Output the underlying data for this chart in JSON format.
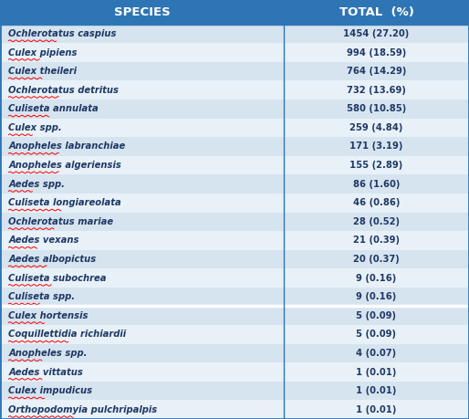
{
  "title_species": "SPECIES",
  "title_total": "TOTAL  (%)",
  "header_bg": "#2E75B6",
  "header_text_color": "#FFFFFF",
  "row_bg_even": "#D6E4F0",
  "row_bg_odd": "#E8F1F8",
  "border_color": "#2E75B6",
  "species_text_color": "#1F3864",
  "total_text_color": "#1F3864",
  "separator_color": "#FFFFFF",
  "rows": [
    {
      "species": "Ochlerotatus caspius",
      "total": "1454 (27.20)",
      "group": "A"
    },
    {
      "species": "Culex pipiens",
      "total": "994 (18.59)",
      "group": "A"
    },
    {
      "species": "Culex theileri",
      "total": "764 (14.29)",
      "group": "A"
    },
    {
      "species": "Ochlerotatus detritus",
      "total": "732 (13.69)",
      "group": "A"
    },
    {
      "species": "Culiseta annulata",
      "total": "580 (10.85)",
      "group": "A"
    },
    {
      "species": "Culex spp.",
      "total": "259 (4.84)",
      "group": "A"
    },
    {
      "species": "Anopheles labranchiae",
      "total": "171 (3.19)",
      "group": "A"
    },
    {
      "species": "Anopheles algeriensis",
      "total": "155 (2.89)",
      "group": "A"
    },
    {
      "species": "Aedes spp.",
      "total": "86 (1.60)",
      "group": "A"
    },
    {
      "species": "Culiseta longiareolata",
      "total": "46 (0.86)",
      "group": "A"
    },
    {
      "species": "Ochlerotatus mariae",
      "total": "28 (0.52)",
      "group": "A"
    },
    {
      "species": "Aedes vexans",
      "total": "21 (0.39)",
      "group": "A"
    },
    {
      "species": "Aedes albopictus",
      "total": "20 (0.37)",
      "group": "A"
    },
    {
      "species": "Culiseta subochrea",
      "total": "9 (0.16)",
      "group": "A"
    },
    {
      "species": "Culiseta spp.",
      "total": "9 (0.16)",
      "group": "A"
    },
    {
      "species": "Culex hortensis",
      "total": "5 (0.09)",
      "group": "B"
    },
    {
      "species": "Coquillettidia richiardii",
      "total": "5 (0.09)",
      "group": "B"
    },
    {
      "species": "Anopheles spp.",
      "total": "4 (0.07)",
      "group": "B"
    },
    {
      "species": "Aedes vittatus",
      "total": "1 (0.01)",
      "group": "B"
    },
    {
      "species": "Culex impudicus",
      "total": "1 (0.01)",
      "group": "B"
    },
    {
      "species": "Orthopodomyia pulchripalpis",
      "total": "1 (0.01)",
      "group": "B"
    }
  ],
  "figsize": [
    5.14,
    4.59
  ],
  "dpi": 100
}
